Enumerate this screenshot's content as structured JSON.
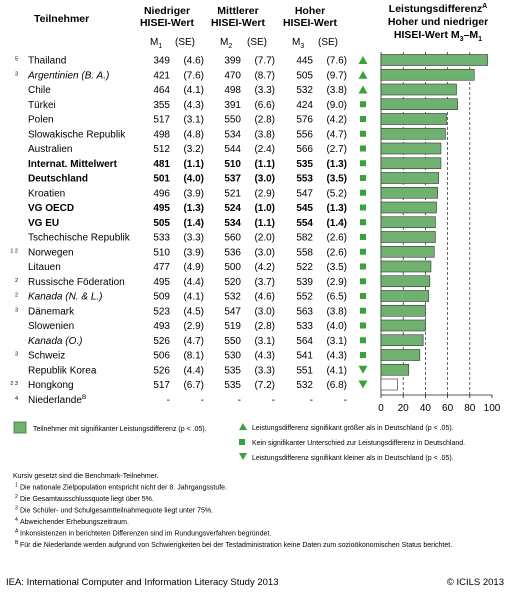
{
  "header": {
    "participant_col": "Teilnehmer",
    "groups": [
      {
        "line1": "Niedriger",
        "line2": "HISEI-Wert",
        "mean": "M",
        "sub": "1",
        "se": "(SE)"
      },
      {
        "line1": "Mittlerer",
        "line2": "HISEI-Wert",
        "mean": "M",
        "sub": "2",
        "se": "(SE)"
      },
      {
        "line1": "Hoher",
        "line2": "HISEI-Wert",
        "mean": "M",
        "sub": "3",
        "se": "(SE)"
      }
    ],
    "diff_title_1": "Leistungsdifferenz",
    "diff_title_sup": "A",
    "diff_title_2": "Hoher und niedriger",
    "diff_title_3": "HISEI-Wert  M",
    "diff_title_3_sub_a": "3",
    "diff_title_3_mid": "–M",
    "diff_title_3_sub_b": "1"
  },
  "chart_data": {
    "type": "bar",
    "orientation": "horizontal",
    "xlim": [
      0,
      100
    ],
    "xticks": [
      "0",
      "20",
      "40",
      "60",
      "80",
      "100"
    ],
    "rows": [
      {
        "name": "Thailand",
        "fn": "5",
        "style": "normal",
        "m1": "349",
        "se1": "(4.6)",
        "m2": "399",
        "se2": "(7.7)",
        "m3": "445",
        "se3": "(7.6)",
        "diff": 96,
        "sig": "up",
        "green": true
      },
      {
        "name": "Argentinien (B. A.)",
        "fn": "3",
        "style": "italic",
        "m1": "421",
        "se1": "(7.6)",
        "m2": "470",
        "se2": "(8.7)",
        "m3": "505",
        "se3": "(9.7)",
        "diff": 84,
        "sig": "up",
        "green": true
      },
      {
        "name": "Chile",
        "fn": "",
        "style": "normal",
        "m1": "464",
        "se1": "(4.1)",
        "m2": "498",
        "se2": "(3.3)",
        "m3": "532",
        "se3": "(3.8)",
        "diff": 68,
        "sig": "up",
        "green": true
      },
      {
        "name": "Türkei",
        "fn": "",
        "style": "normal",
        "m1": "355",
        "se1": "(4.3)",
        "m2": "391",
        "se2": "(6.6)",
        "m3": "424",
        "se3": "(9.0)",
        "diff": 69,
        "sig": "square",
        "green": true
      },
      {
        "name": "Polen",
        "fn": "",
        "style": "normal",
        "m1": "517",
        "se1": "(3.1)",
        "m2": "550",
        "se2": "(2.8)",
        "m3": "576",
        "se3": "(4.2)",
        "diff": 59,
        "sig": "square",
        "green": true
      },
      {
        "name": "Slowakische Republik",
        "fn": "",
        "style": "normal",
        "m1": "498",
        "se1": "(4.8)",
        "m2": "534",
        "se2": "(3.8)",
        "m3": "556",
        "se3": "(4.7)",
        "diff": 58,
        "sig": "square",
        "green": true
      },
      {
        "name": "Australien",
        "fn": "",
        "style": "normal",
        "m1": "512",
        "se1": "(3.2)",
        "m2": "544",
        "se2": "(2.4)",
        "m3": "566",
        "se3": "(2.7)",
        "diff": 54,
        "sig": "square",
        "green": true
      },
      {
        "name": "Internat. Mittelwert",
        "fn": "",
        "style": "bold",
        "m1": "481",
        "se1": "(1.1)",
        "m2": "510",
        "se2": "(1.1)",
        "m3": "535",
        "se3": "(1.3)",
        "diff": 54,
        "sig": "square",
        "green": true
      },
      {
        "name": "Deutschland",
        "fn": "",
        "style": "bold",
        "m1": "501",
        "se1": "(4.0)",
        "m2": "537",
        "se2": "(3.0)",
        "m3": "553",
        "se3": "(3.5)",
        "diff": 52,
        "sig": "square",
        "green": true
      },
      {
        "name": "Kroatien",
        "fn": "",
        "style": "normal",
        "m1": "496",
        "se1": "(3.9)",
        "m2": "521",
        "se2": "(2.9)",
        "m3": "547",
        "se3": "(5.2)",
        "diff": 51,
        "sig": "square",
        "green": true
      },
      {
        "name": "VG OECD",
        "fn": "",
        "style": "bold",
        "m1": "495",
        "se1": "(1.3)",
        "m2": "524",
        "se2": "(1.0)",
        "m3": "545",
        "se3": "(1.3)",
        "diff": 50,
        "sig": "square",
        "green": true
      },
      {
        "name": "VG EU",
        "fn": "",
        "style": "bold",
        "m1": "505",
        "se1": "(1.4)",
        "m2": "534",
        "se2": "(1.1)",
        "m3": "554",
        "se3": "(1.4)",
        "diff": 49,
        "sig": "square",
        "green": true
      },
      {
        "name": "Tschechische Republik",
        "fn": "",
        "style": "normal",
        "m1": "533",
        "se1": "(3.3)",
        "m2": "560",
        "se2": "(2.0)",
        "m3": "582",
        "se3": "(2.6)",
        "diff": 49,
        "sig": "square",
        "green": true
      },
      {
        "name": "Norwegen",
        "fn": "1 2",
        "style": "normal",
        "m1": "510",
        "se1": "(3.9)",
        "m2": "536",
        "se2": "(3.0)",
        "m3": "558",
        "se3": "(2.6)",
        "diff": 48,
        "sig": "square",
        "green": true
      },
      {
        "name": "Litauen",
        "fn": "",
        "style": "normal",
        "m1": "477",
        "se1": "(4.9)",
        "m2": "500",
        "se2": "(4.2)",
        "m3": "522",
        "se3": "(3.5)",
        "diff": 45,
        "sig": "square",
        "green": true
      },
      {
        "name": "Russische Föderation",
        "fn": "2",
        "style": "normal",
        "m1": "495",
        "se1": "(4.4)",
        "m2": "520",
        "se2": "(3.7)",
        "m3": "539",
        "se3": "(2.9)",
        "diff": 44,
        "sig": "square",
        "green": true
      },
      {
        "name": "Kanada (N. & L.)",
        "fn": "2",
        "style": "italic",
        "m1": "509",
        "se1": "(4.1)",
        "m2": "532",
        "se2": "(4.6)",
        "m3": "552",
        "se3": "(6.5)",
        "diff": 43,
        "sig": "square",
        "green": true
      },
      {
        "name": "Dänemark",
        "fn": "3",
        "style": "normal",
        "m1": "523",
        "se1": "(4.5)",
        "m2": "547",
        "se2": "(3.0)",
        "m3": "563",
        "se3": "(3.8)",
        "diff": 40,
        "sig": "square",
        "green": true
      },
      {
        "name": "Slowenien",
        "fn": "",
        "style": "normal",
        "m1": "493",
        "se1": "(2.9)",
        "m2": "519",
        "se2": "(2.8)",
        "m3": "533",
        "se3": "(4.0)",
        "diff": 40,
        "sig": "square",
        "green": true
      },
      {
        "name": "Kanada (O.)",
        "fn": "",
        "style": "italic",
        "m1": "526",
        "se1": "(4.7)",
        "m2": "550",
        "se2": "(3.1)",
        "m3": "564",
        "se3": "(3.1)",
        "diff": 38,
        "sig": "square",
        "green": true
      },
      {
        "name": "Schweiz",
        "fn": "3",
        "style": "normal",
        "m1": "506",
        "se1": "(8.1)",
        "m2": "530",
        "se2": "(4.3)",
        "m3": "541",
        "se3": "(4.3)",
        "diff": 35,
        "sig": "square",
        "green": true
      },
      {
        "name": "Republik Korea",
        "fn": "",
        "style": "normal",
        "m1": "526",
        "se1": "(4.4)",
        "m2": "535",
        "se2": "(3.3)",
        "m3": "551",
        "se3": "(4.1)",
        "diff": 25,
        "sig": "down",
        "green": true
      },
      {
        "name": "Hongkong",
        "fn": "2 3",
        "style": "normal",
        "m1": "517",
        "se1": "(6.7)",
        "m2": "535",
        "se2": "(7.2)",
        "m3": "532",
        "se3": "(6.8)",
        "diff": 15,
        "sig": "down",
        "green": false
      },
      {
        "name": "Niederlande",
        "fn": "4",
        "style": "normal",
        "sup": "B",
        "m1": "-",
        "se1": "-",
        "m2": "-",
        "se2": "-",
        "m3": "-",
        "se3": "-",
        "diff": null,
        "sig": "",
        "green": false
      }
    ]
  },
  "legend": {
    "green_box": "Teilnehmer mit signifikanter Leistungsdifferenz (p < .05).",
    "up": "Leistungsdifferenz signifikant größer als in Deutschland (p < .05).",
    "square": "Kein signifikanter Unterschied zur Leistungsdifferenz in Deutschland.",
    "down": "Leistungsdifferenz signifikant kleiner als in Deutschland (p < .05)."
  },
  "notes": [
    {
      "fn": "",
      "text": "Kursiv gesetzt sind die Benchmark-Teilnehmer."
    },
    {
      "fn": "1",
      "text": "Die nationale Zielpopulation entspricht nicht der 8. Jahrgangsstufe."
    },
    {
      "fn": "2",
      "text": "Die Gesamtausschlussquote liegt über 5%."
    },
    {
      "fn": "3",
      "text": "Die Schüler- und Schulgesamtteilnahmequote liegt unter 75%."
    },
    {
      "fn": "4",
      "text": "Abweichender Erhebungszeitraum."
    },
    {
      "fn": "A",
      "text": "Inkonsistenzen in berichteten Differenzen sind im Rundungsverfahren begründet."
    },
    {
      "fn": "B",
      "text": "Für die Niederlande werden aufgrund von Schwierigkeiten bei der Testadministration keine Daten zum sozioökonomischen Status berichtet."
    }
  ],
  "footer": {
    "left": "IEA: International Computer and Information Literacy Study 2013",
    "right": "© ICILS 2013"
  },
  "colors": {
    "green": "#6fb26f",
    "green_dark": "#2e7d32",
    "symbol": "#3aa23a",
    "text": "#222222"
  }
}
